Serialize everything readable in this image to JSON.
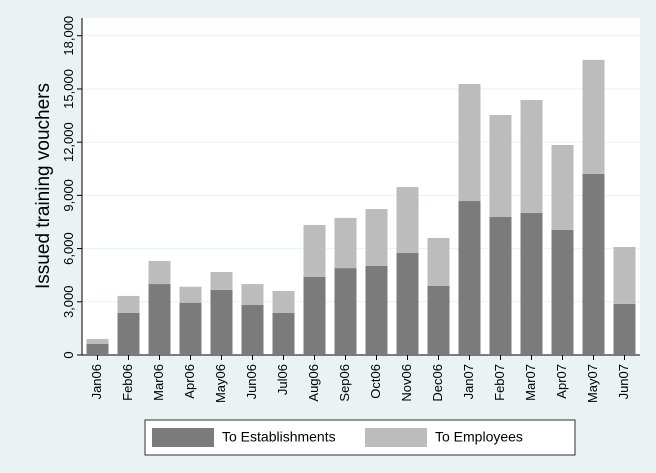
{
  "chart_data": {
    "type": "stacked-bar",
    "y_label": "Issued training vouchers",
    "categories": [
      "Jan06",
      "Feb06",
      "Mar06",
      "Apr06",
      "May06",
      "Jun06",
      "Jul06",
      "Aug06",
      "Sep06",
      "Oct06",
      "Nov06",
      "Dec06",
      "Jan07",
      "Feb07",
      "Mar07",
      "Apr07",
      "May07",
      "Jun07"
    ],
    "series": [
      {
        "name": "To Establishments",
        "color": "#7b7b7b",
        "values": [
          620,
          2370,
          4000,
          2950,
          3670,
          2820,
          2370,
          4400,
          4900,
          5020,
          5750,
          3890,
          8680,
          7780,
          8010,
          7050,
          10210,
          2880
        ]
      },
      {
        "name": "To Employees",
        "color": "#bcbcbc",
        "values": [
          280,
          960,
          1300,
          900,
          1010,
          1180,
          1240,
          2930,
          2830,
          3210,
          3720,
          2710,
          6600,
          5750,
          6370,
          4790,
          6430,
          3210
        ]
      }
    ],
    "ylim": [
      0,
      19000
    ],
    "yticks": [
      0,
      {
        "value": 3000,
        "label": "3,000"
      },
      {
        "value": 6000,
        "label": "6,000"
      },
      {
        "value": 9000,
        "label": "9,000"
      },
      {
        "value": 12000,
        "label": "12,000"
      },
      {
        "value": 15000,
        "label": "15,000"
      },
      {
        "value": 18000,
        "label": "18,000"
      }
    ],
    "grid": true
  }
}
